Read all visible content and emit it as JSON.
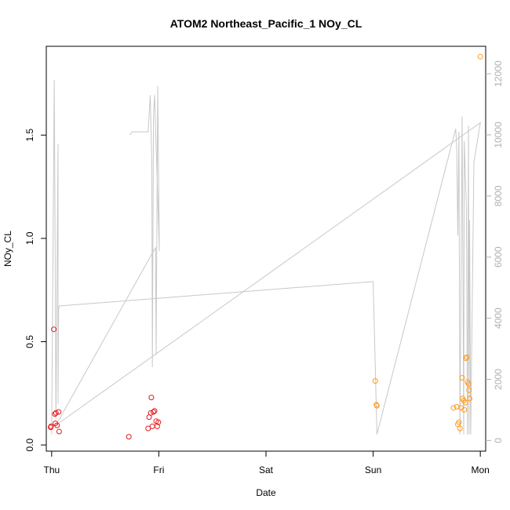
{
  "chart_data": {
    "type": "scatter",
    "title": "ATOM2 Northeast_Pacific_1 NOy_CL",
    "xlabel": "Date",
    "ylabel": "NOy_CL",
    "x_unit": "days since Thu 00:00",
    "xlim": [
      -0.05,
      4.05
    ],
    "ylim": [
      -0.03,
      1.93
    ],
    "x_ticks": [
      {
        "value": 0,
        "label": "Thu"
      },
      {
        "value": 1,
        "label": "Fri"
      },
      {
        "value": 2,
        "label": "Sat"
      },
      {
        "value": 3,
        "label": "Sun"
      },
      {
        "value": 4,
        "label": "Mon"
      }
    ],
    "y_ticks": [
      {
        "value": 0.0,
        "label": "0.0"
      },
      {
        "value": 0.5,
        "label": "0.5"
      },
      {
        "value": 1.0,
        "label": "1.0"
      },
      {
        "value": 1.5,
        "label": "1.5"
      }
    ],
    "y2lim": [
      -350,
      12900
    ],
    "y2_ticks": [
      {
        "value": 0,
        "label": "0"
      },
      {
        "value": 2000,
        "label": "2000"
      },
      {
        "value": 4000,
        "label": "4000"
      },
      {
        "value": 6000,
        "label": "6000"
      },
      {
        "value": 8000,
        "label": "8000"
      },
      {
        "value": 10000,
        "label": "10000"
      },
      {
        "value": 12000,
        "label": "12000"
      }
    ],
    "colors": {
      "red_points": "#e41a1c",
      "orange_points": "#ff9a1f",
      "altitude_line": "#c8c8c8",
      "axis": "#000000",
      "right_axis": "#b0b0b0"
    },
    "series": [
      {
        "name": "",
        "color": "#e41a1c",
        "x": [
          -0.01,
          -0.005,
          0.02,
          0.03,
          0.035,
          0.04,
          0.05,
          0.07,
          0.065,
          0.72,
          0.9,
          0.91,
          0.925,
          0.93,
          0.94,
          0.95,
          0.96,
          0.975,
          0.985,
          0.995
        ],
        "y": [
          0.085,
          0.09,
          0.56,
          0.15,
          0.105,
          0.155,
          0.095,
          0.065,
          0.16,
          0.04,
          0.08,
          0.135,
          0.155,
          0.23,
          0.09,
          0.16,
          0.165,
          0.115,
          0.09,
          0.11
        ]
      },
      {
        "name": "",
        "color": "#ff9a1f",
        "x": [
          3.02,
          3.03,
          3.035,
          3.75,
          3.78,
          3.79,
          3.8,
          3.81,
          3.82,
          3.83,
          3.835,
          3.845,
          3.85,
          3.86,
          3.865,
          3.875,
          3.88,
          3.89,
          3.895,
          3.9,
          4.0
        ],
        "y": [
          0.31,
          0.195,
          0.19,
          0.18,
          0.185,
          0.1,
          0.11,
          0.08,
          0.18,
          0.325,
          0.225,
          0.215,
          0.17,
          0.205,
          0.42,
          0.425,
          0.305,
          0.295,
          0.265,
          0.225,
          1.88
        ]
      },
      {
        "name": "",
        "type": "line",
        "axis": "right",
        "color": "#c8c8c8",
        "x": [
          0.0,
          0.025,
          0.04,
          0.06,
          0.06,
          0.065,
          0.07,
          0.07,
          3.0,
          3.035,
          3.77,
          3.78,
          3.79,
          3.8,
          3.81,
          3.83,
          3.845,
          3.85,
          3.87,
          3.88,
          3.89,
          3.895,
          3.9,
          3.91,
          3.94,
          4.0,
          0.04,
          0.935,
          0.97,
          0.975,
          0.99,
          1.005,
          0.96,
          0.95,
          0.94,
          0.935,
          0.92,
          0.9,
          0.75,
          0.73
        ],
        "y": [
          200,
          11800,
          700,
          9700,
          1200,
          4300,
          4400,
          4400,
          5200,
          200,
          10200,
          9500,
          6700,
          10100,
          200,
          10600,
          200,
          9800,
          7600,
          200,
          10300,
          200,
          7200,
          200,
          9100,
          10400,
          500,
          6100,
          6300,
          2800,
          11600,
          6200,
          11300,
          10600,
          2400,
          9100,
          11300,
          10100,
          10100,
          10000
        ]
      }
    ]
  }
}
